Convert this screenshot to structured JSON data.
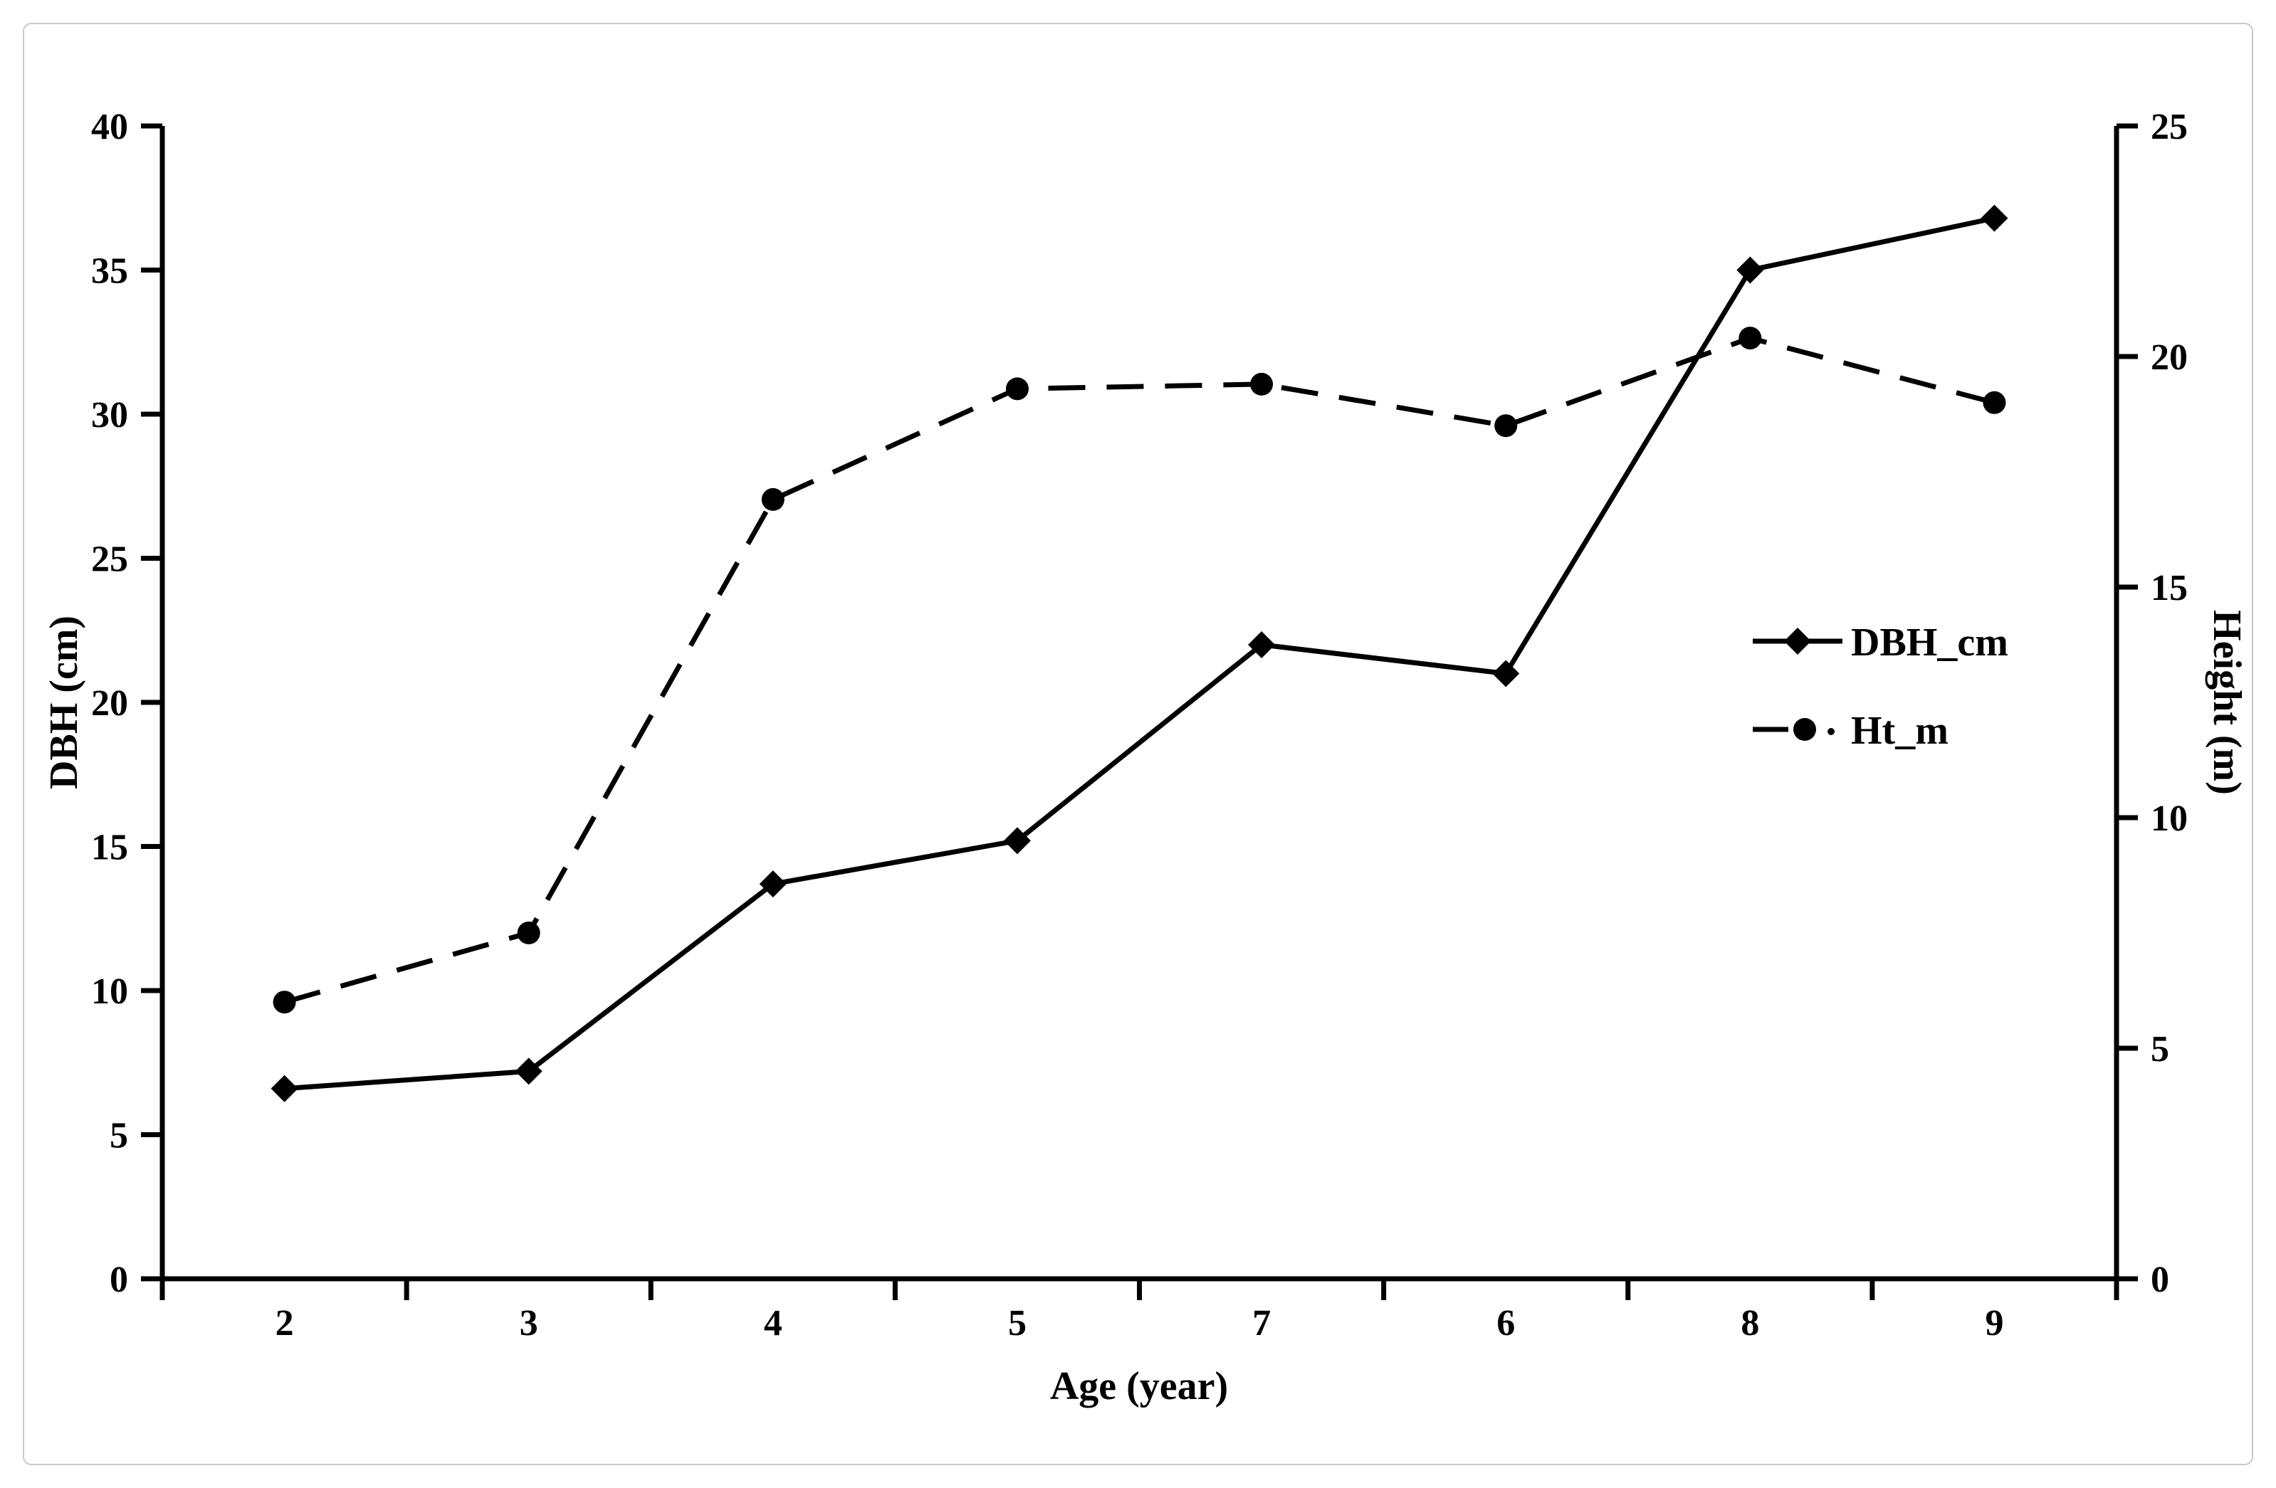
{
  "figure": {
    "background": "#ffffff",
    "border_color": "#c9c9c9",
    "ink_color": "#000000"
  },
  "chart_data": {
    "type": "line",
    "title": "",
    "xlabel": "Age (year)",
    "ylabel": "DBH (cm)",
    "ylabel_right": "Height (m)",
    "categories": [
      "2",
      "3",
      "4",
      "5",
      "7",
      "6",
      "8",
      "9"
    ],
    "left_axis": {
      "min": 0,
      "max": 40,
      "tick_step": 5,
      "tick_labels": [
        "0",
        "5",
        "10",
        "15",
        "20",
        "25",
        "30",
        "35",
        "40"
      ]
    },
    "right_axis": {
      "min": 0,
      "max": 25,
      "tick_step": 5,
      "tick_labels": [
        "0",
        "5",
        "10",
        "15",
        "20",
        "25"
      ]
    },
    "series": [
      {
        "name": "DBH_cm",
        "axis": "left",
        "line_style": "solid",
        "marker": "diamond",
        "values": [
          6.6,
          7.2,
          13.7,
          15.2,
          22.0,
          21.0,
          35.0,
          36.8
        ]
      },
      {
        "name": "Ht_m",
        "axis": "right",
        "line_style": "dashed",
        "marker": "circle",
        "values": [
          6.0,
          7.5,
          16.9,
          19.3,
          19.4,
          18.5,
          20.4,
          19.0
        ]
      }
    ],
    "legend": {
      "position": "inside-right-center",
      "entries": [
        "DBH_cm",
        "Ht_m"
      ]
    },
    "grid": false
  }
}
